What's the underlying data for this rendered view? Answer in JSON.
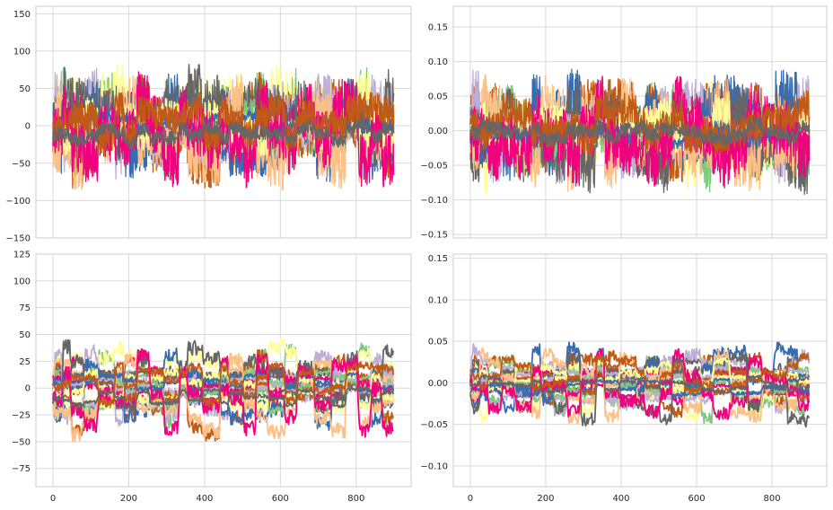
{
  "chart_data": [
    {
      "type": "line",
      "position": "top-left",
      "xlim": [
        -45,
        945
      ],
      "ylim": [
        -150,
        160
      ],
      "xticks": [
        0,
        200,
        400,
        600,
        800
      ],
      "xtick_labels": [
        "",
        "",
        "",
        "",
        ""
      ],
      "yticks": [
        -150,
        -100,
        -50,
        0,
        50,
        100,
        150
      ],
      "ytick_labels": [
        "−150",
        "−100",
        "−50",
        "0",
        "50",
        "100",
        "150"
      ],
      "amplitude": 70,
      "noise": 0.55,
      "n_points": 900,
      "grid": true,
      "series_count": 24
    },
    {
      "type": "line",
      "position": "top-right",
      "xlim": [
        -45,
        945
      ],
      "ylim": [
        -0.155,
        0.18
      ],
      "xticks": [
        0,
        200,
        400,
        600,
        800
      ],
      "xtick_labels": [
        "",
        "",
        "",
        "",
        ""
      ],
      "yticks": [
        -0.15,
        -0.1,
        -0.05,
        0.0,
        0.05,
        0.1,
        0.15
      ],
      "ytick_labels": [
        "−0.15",
        "−0.10",
        "−0.05",
        "0.00",
        "0.05",
        "0.10",
        "0.15"
      ],
      "amplitude": 0.075,
      "noise": 0.55,
      "n_points": 900,
      "grid": true,
      "series_count": 24
    },
    {
      "type": "line",
      "position": "bottom-left",
      "xlim": [
        -45,
        945
      ],
      "ylim": [
        -92,
        125
      ],
      "xticks": [
        0,
        200,
        400,
        600,
        800
      ],
      "xtick_labels": [
        "0",
        "200",
        "400",
        "600",
        "800"
      ],
      "yticks": [
        -75,
        -50,
        -25,
        0,
        25,
        50,
        75,
        100,
        125
      ],
      "ytick_labels": [
        "−75",
        "−50",
        "−25",
        "0",
        "25",
        "50",
        "75",
        "100",
        "125"
      ],
      "amplitude": 60,
      "noise": 0.12,
      "n_points": 900,
      "grid": true,
      "series_count": 24
    },
    {
      "type": "line",
      "position": "bottom-right",
      "xlim": [
        -45,
        945
      ],
      "ylim": [
        -0.125,
        0.155
      ],
      "xticks": [
        0,
        200,
        400,
        600,
        800
      ],
      "xtick_labels": [
        "0",
        "200",
        "400",
        "600",
        "800"
      ],
      "yticks": [
        -0.1,
        -0.05,
        0.0,
        0.05,
        0.1,
        0.15
      ],
      "ytick_labels": [
        "−0.10",
        "−0.05",
        "0.00",
        "0.05",
        "0.10",
        "0.15"
      ],
      "amplitude": 0.065,
      "noise": 0.12,
      "n_points": 900,
      "grid": true,
      "series_count": 24
    }
  ],
  "colors": {
    "palette": [
      "#7fc97f",
      "#beaed4",
      "#fdc086",
      "#ffff99",
      "#386cb0",
      "#f0027f",
      "#bf5b17",
      "#666666"
    ],
    "grid": "#d9d9d9",
    "background": "#ffffff"
  }
}
